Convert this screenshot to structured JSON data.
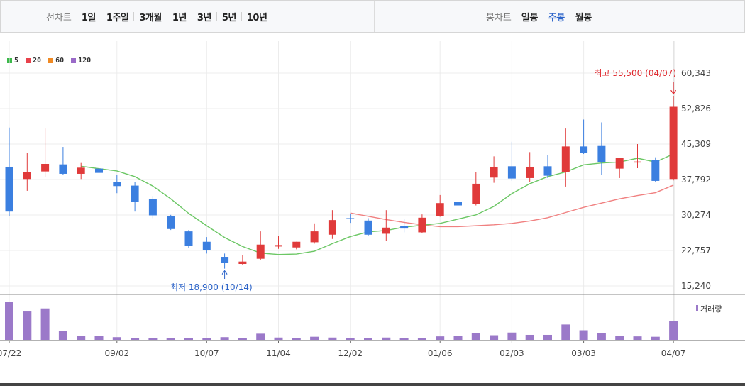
{
  "toolbar": {
    "line_chart_label": "선차트",
    "line_periods": [
      "1일",
      "1주일",
      "3개월",
      "1년",
      "3년",
      "5년",
      "10년"
    ],
    "candle_chart_label": "봉차트",
    "candle_periods": [
      "일봉",
      "주봉",
      "월봉"
    ],
    "selected_candle_period": "주봉"
  },
  "chart_data": {
    "type": "candlestick",
    "legend": [
      {
        "label": "5",
        "color": "#3cb84a"
      },
      {
        "label": "20",
        "color": "#e8414b"
      },
      {
        "label": "60",
        "color": "#f08a24"
      },
      {
        "label": "120",
        "color": "#9a6ac8"
      }
    ],
    "colors": {
      "up": "#e03a3a",
      "down": "#3b7fe0",
      "ma5": "#6cc765",
      "ma20": "#f08080",
      "volume": "#9b79c9"
    },
    "y_ticks": [
      "60,343",
      "52,826",
      "45,309",
      "37,792",
      "30,274",
      "22,757",
      "15,240"
    ],
    "ylim": [
      15240,
      60343
    ],
    "x_ticks": [
      {
        "label": "07/22",
        "index": 0
      },
      {
        "label": "09/02",
        "index": 6
      },
      {
        "label": "10/07",
        "index": 11
      },
      {
        "label": "11/04",
        "index": 15
      },
      {
        "label": "12/02",
        "index": 19
      },
      {
        "label": "01/06",
        "index": 24
      },
      {
        "label": "02/03",
        "index": 28
      },
      {
        "label": "03/03",
        "index": 32
      },
      {
        "label": "04/07",
        "index": 37
      }
    ],
    "volume_label": "거래량",
    "max_annotation": {
      "text": "최고 55,500 (04/07)",
      "index": 37,
      "value": 55500
    },
    "min_annotation": {
      "text": "최저 18,900 (10/14)",
      "index": 12,
      "value": 18900
    },
    "candles": [
      {
        "o": 40500,
        "h": 48800,
        "l": 30000,
        "c": 31000
      },
      {
        "o": 37900,
        "h": 43400,
        "l": 35400,
        "c": 39400
      },
      {
        "o": 39500,
        "h": 48600,
        "l": 38400,
        "c": 41100
      },
      {
        "o": 41000,
        "h": 44700,
        "l": 38800,
        "c": 39000
      },
      {
        "o": 39000,
        "h": 41300,
        "l": 37900,
        "c": 40300
      },
      {
        "o": 40100,
        "h": 41300,
        "l": 35500,
        "c": 39200
      },
      {
        "o": 37300,
        "h": 38800,
        "l": 34900,
        "c": 36400
      },
      {
        "o": 36500,
        "h": 37300,
        "l": 31000,
        "c": 33000
      },
      {
        "o": 33600,
        "h": 34300,
        "l": 29600,
        "c": 30200
      },
      {
        "o": 30100,
        "h": 30300,
        "l": 27100,
        "c": 27300
      },
      {
        "o": 26800,
        "h": 27100,
        "l": 23200,
        "c": 23800
      },
      {
        "o": 24600,
        "h": 25600,
        "l": 22100,
        "c": 22800
      },
      {
        "o": 21400,
        "h": 22100,
        "l": 18900,
        "c": 20100
      },
      {
        "o": 19900,
        "h": 21800,
        "l": 19600,
        "c": 20400
      },
      {
        "o": 21000,
        "h": 26800,
        "l": 20800,
        "c": 24000
      },
      {
        "o": 23600,
        "h": 25900,
        "l": 23100,
        "c": 23900
      },
      {
        "o": 23400,
        "h": 24600,
        "l": 23000,
        "c": 24600
      },
      {
        "o": 24500,
        "h": 28500,
        "l": 24200,
        "c": 26800
      },
      {
        "o": 26100,
        "h": 31300,
        "l": 25200,
        "c": 29200
      },
      {
        "o": 29600,
        "h": 30600,
        "l": 28600,
        "c": 29500
      },
      {
        "o": 29100,
        "h": 29600,
        "l": 25900,
        "c": 26100
      },
      {
        "o": 26300,
        "h": 31300,
        "l": 24800,
        "c": 27600
      },
      {
        "o": 27900,
        "h": 29400,
        "l": 26600,
        "c": 27400
      },
      {
        "o": 26600,
        "h": 30400,
        "l": 26400,
        "c": 29700
      },
      {
        "o": 30100,
        "h": 34500,
        "l": 29900,
        "c": 32800
      },
      {
        "o": 33000,
        "h": 33500,
        "l": 31100,
        "c": 32300
      },
      {
        "o": 32600,
        "h": 39400,
        "l": 32300,
        "c": 36900
      },
      {
        "o": 38200,
        "h": 42700,
        "l": 37100,
        "c": 40500
      },
      {
        "o": 40600,
        "h": 45800,
        "l": 37500,
        "c": 38000
      },
      {
        "o": 38100,
        "h": 43600,
        "l": 37300,
        "c": 40500
      },
      {
        "o": 40600,
        "h": 42900,
        "l": 38100,
        "c": 38600
      },
      {
        "o": 39400,
        "h": 48600,
        "l": 36300,
        "c": 44800
      },
      {
        "o": 44800,
        "h": 50500,
        "l": 43200,
        "c": 43500
      },
      {
        "o": 44900,
        "h": 49900,
        "l": 38700,
        "c": 41500
      },
      {
        "o": 40100,
        "h": 42300,
        "l": 38100,
        "c": 42300
      },
      {
        "o": 41600,
        "h": 45300,
        "l": 40200,
        "c": 41600
      },
      {
        "o": 41900,
        "h": 42500,
        "l": 37300,
        "c": 37500
      },
      {
        "o": 37900,
        "h": 55500,
        "l": 37600,
        "c": 53200
      }
    ],
    "ma5": [
      null,
      null,
      null,
      null,
      40600,
      40100,
      39600,
      38400,
      36400,
      33700,
      30600,
      28000,
      25500,
      23600,
      22200,
      21900,
      22000,
      22600,
      24200,
      25700,
      26700,
      27000,
      27700,
      28100,
      28500,
      29400,
      30300,
      32100,
      34800,
      36900,
      38400,
      39400,
      40900,
      41300,
      41500,
      42300,
      41500,
      43200
    ],
    "ma20": [
      null,
      null,
      null,
      null,
      null,
      null,
      null,
      null,
      null,
      null,
      null,
      null,
      null,
      null,
      null,
      null,
      null,
      null,
      null,
      30700,
      30000,
      29300,
      28700,
      28200,
      27800,
      27800,
      28000,
      28200,
      28500,
      29000,
      29700,
      30800,
      31900,
      32800,
      33700,
      34400,
      35000,
      36600
    ],
    "volume": [
      100,
      74,
      82,
      24,
      11,
      10,
      7,
      5,
      4,
      4,
      5,
      5,
      7,
      5,
      16,
      6,
      4,
      8,
      6,
      4,
      5,
      6,
      5,
      4,
      9,
      10,
      17,
      12,
      19,
      13,
      13,
      40,
      25,
      17,
      11,
      9,
      8,
      49
    ]
  }
}
